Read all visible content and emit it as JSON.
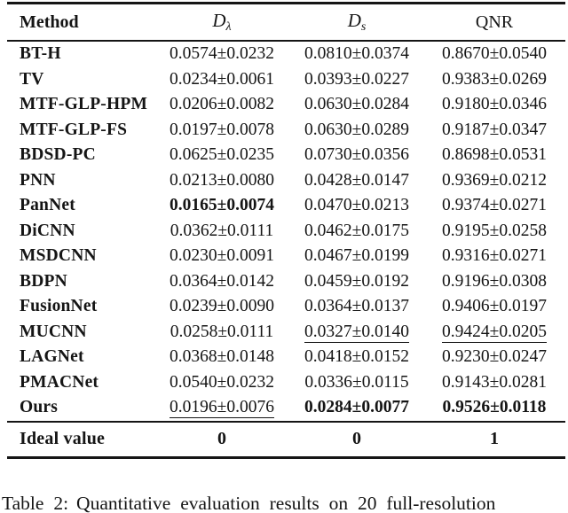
{
  "header": {
    "method": "Method",
    "d_lambda": {
      "base": "D",
      "sub": "λ"
    },
    "d_s": {
      "base": "D",
      "sub": "s"
    },
    "qnr": "QNR"
  },
  "rows": [
    {
      "method": "BT-H",
      "cells": [
        {
          "t": "0.0574±0.0232",
          "s": "n"
        },
        {
          "t": "0.0810±0.0374",
          "s": "n"
        },
        {
          "t": "0.8670±0.0540",
          "s": "n"
        }
      ]
    },
    {
      "method": "TV",
      "cells": [
        {
          "t": "0.0234±0.0061",
          "s": "n"
        },
        {
          "t": "0.0393±0.0227",
          "s": "n"
        },
        {
          "t": "0.9383±0.0269",
          "s": "n"
        }
      ]
    },
    {
      "method": "MTF-GLP-HPM",
      "cells": [
        {
          "t": "0.0206±0.0082",
          "s": "n"
        },
        {
          "t": "0.0630±0.0284",
          "s": "n"
        },
        {
          "t": "0.9180±0.0346",
          "s": "n"
        }
      ]
    },
    {
      "method": "MTF-GLP-FS",
      "cells": [
        {
          "t": "0.0197±0.0078",
          "s": "n"
        },
        {
          "t": "0.0630±0.0289",
          "s": "n"
        },
        {
          "t": "0.9187±0.0347",
          "s": "n"
        }
      ]
    },
    {
      "method": "BDSD-PC",
      "cells": [
        {
          "t": "0.0625±0.0235",
          "s": "n"
        },
        {
          "t": "0.0730±0.0356",
          "s": "n"
        },
        {
          "t": "0.8698±0.0531",
          "s": "n"
        }
      ]
    },
    {
      "method": "PNN",
      "cells": [
        {
          "t": "0.0213±0.0080",
          "s": "n"
        },
        {
          "t": "0.0428±0.0147",
          "s": "n"
        },
        {
          "t": "0.9369±0.0212",
          "s": "n"
        }
      ]
    },
    {
      "method": "PanNet",
      "cells": [
        {
          "t": "0.0165±0.0074",
          "s": "b"
        },
        {
          "t": "0.0470±0.0213",
          "s": "n"
        },
        {
          "t": "0.9374±0.0271",
          "s": "n"
        }
      ]
    },
    {
      "method": "DiCNN",
      "cells": [
        {
          "t": "0.0362±0.0111",
          "s": "n"
        },
        {
          "t": "0.0462±0.0175",
          "s": "n"
        },
        {
          "t": "0.9195±0.0258",
          "s": "n"
        }
      ]
    },
    {
      "method": "MSDCNN",
      "cells": [
        {
          "t": "0.0230±0.0091",
          "s": "n"
        },
        {
          "t": "0.0467±0.0199",
          "s": "n"
        },
        {
          "t": "0.9316±0.0271",
          "s": "n"
        }
      ]
    },
    {
      "method": "BDPN",
      "cells": [
        {
          "t": "0.0364±0.0142",
          "s": "n"
        },
        {
          "t": "0.0459±0.0192",
          "s": "n"
        },
        {
          "t": "0.9196±0.0308",
          "s": "n"
        }
      ]
    },
    {
      "method": "FusionNet",
      "cells": [
        {
          "t": "0.0239±0.0090",
          "s": "n"
        },
        {
          "t": "0.0364±0.0137",
          "s": "n"
        },
        {
          "t": "0.9406±0.0197",
          "s": "n"
        }
      ]
    },
    {
      "method": "MUCNN",
      "cells": [
        {
          "t": "0.0258±0.0111",
          "s": "n"
        },
        {
          "t": "0.0327±0.0140",
          "s": "u"
        },
        {
          "t": "0.9424±0.0205",
          "s": "u"
        }
      ]
    },
    {
      "method": "LAGNet",
      "cells": [
        {
          "t": "0.0368±0.0148",
          "s": "n"
        },
        {
          "t": "0.0418±0.0152",
          "s": "n"
        },
        {
          "t": "0.9230±0.0247",
          "s": "n"
        }
      ]
    },
    {
      "method": "PMACNet",
      "cells": [
        {
          "t": "0.0540±0.0232",
          "s": "n"
        },
        {
          "t": "0.0336±0.0115",
          "s": "n"
        },
        {
          "t": "0.9143±0.0281",
          "s": "n"
        }
      ]
    },
    {
      "method": "Ours",
      "cells": [
        {
          "t": "0.0196±0.0076",
          "s": "u"
        },
        {
          "t": "0.0284±0.0077",
          "s": "b"
        },
        {
          "t": "0.9526±0.0118",
          "s": "b"
        }
      ]
    }
  ],
  "ideal": {
    "label": "Ideal value",
    "values": [
      "0",
      "0",
      "1"
    ]
  },
  "caption": {
    "label": "Table 2:",
    "text": "Quantitative evaluation results on 20 full-resolution"
  }
}
